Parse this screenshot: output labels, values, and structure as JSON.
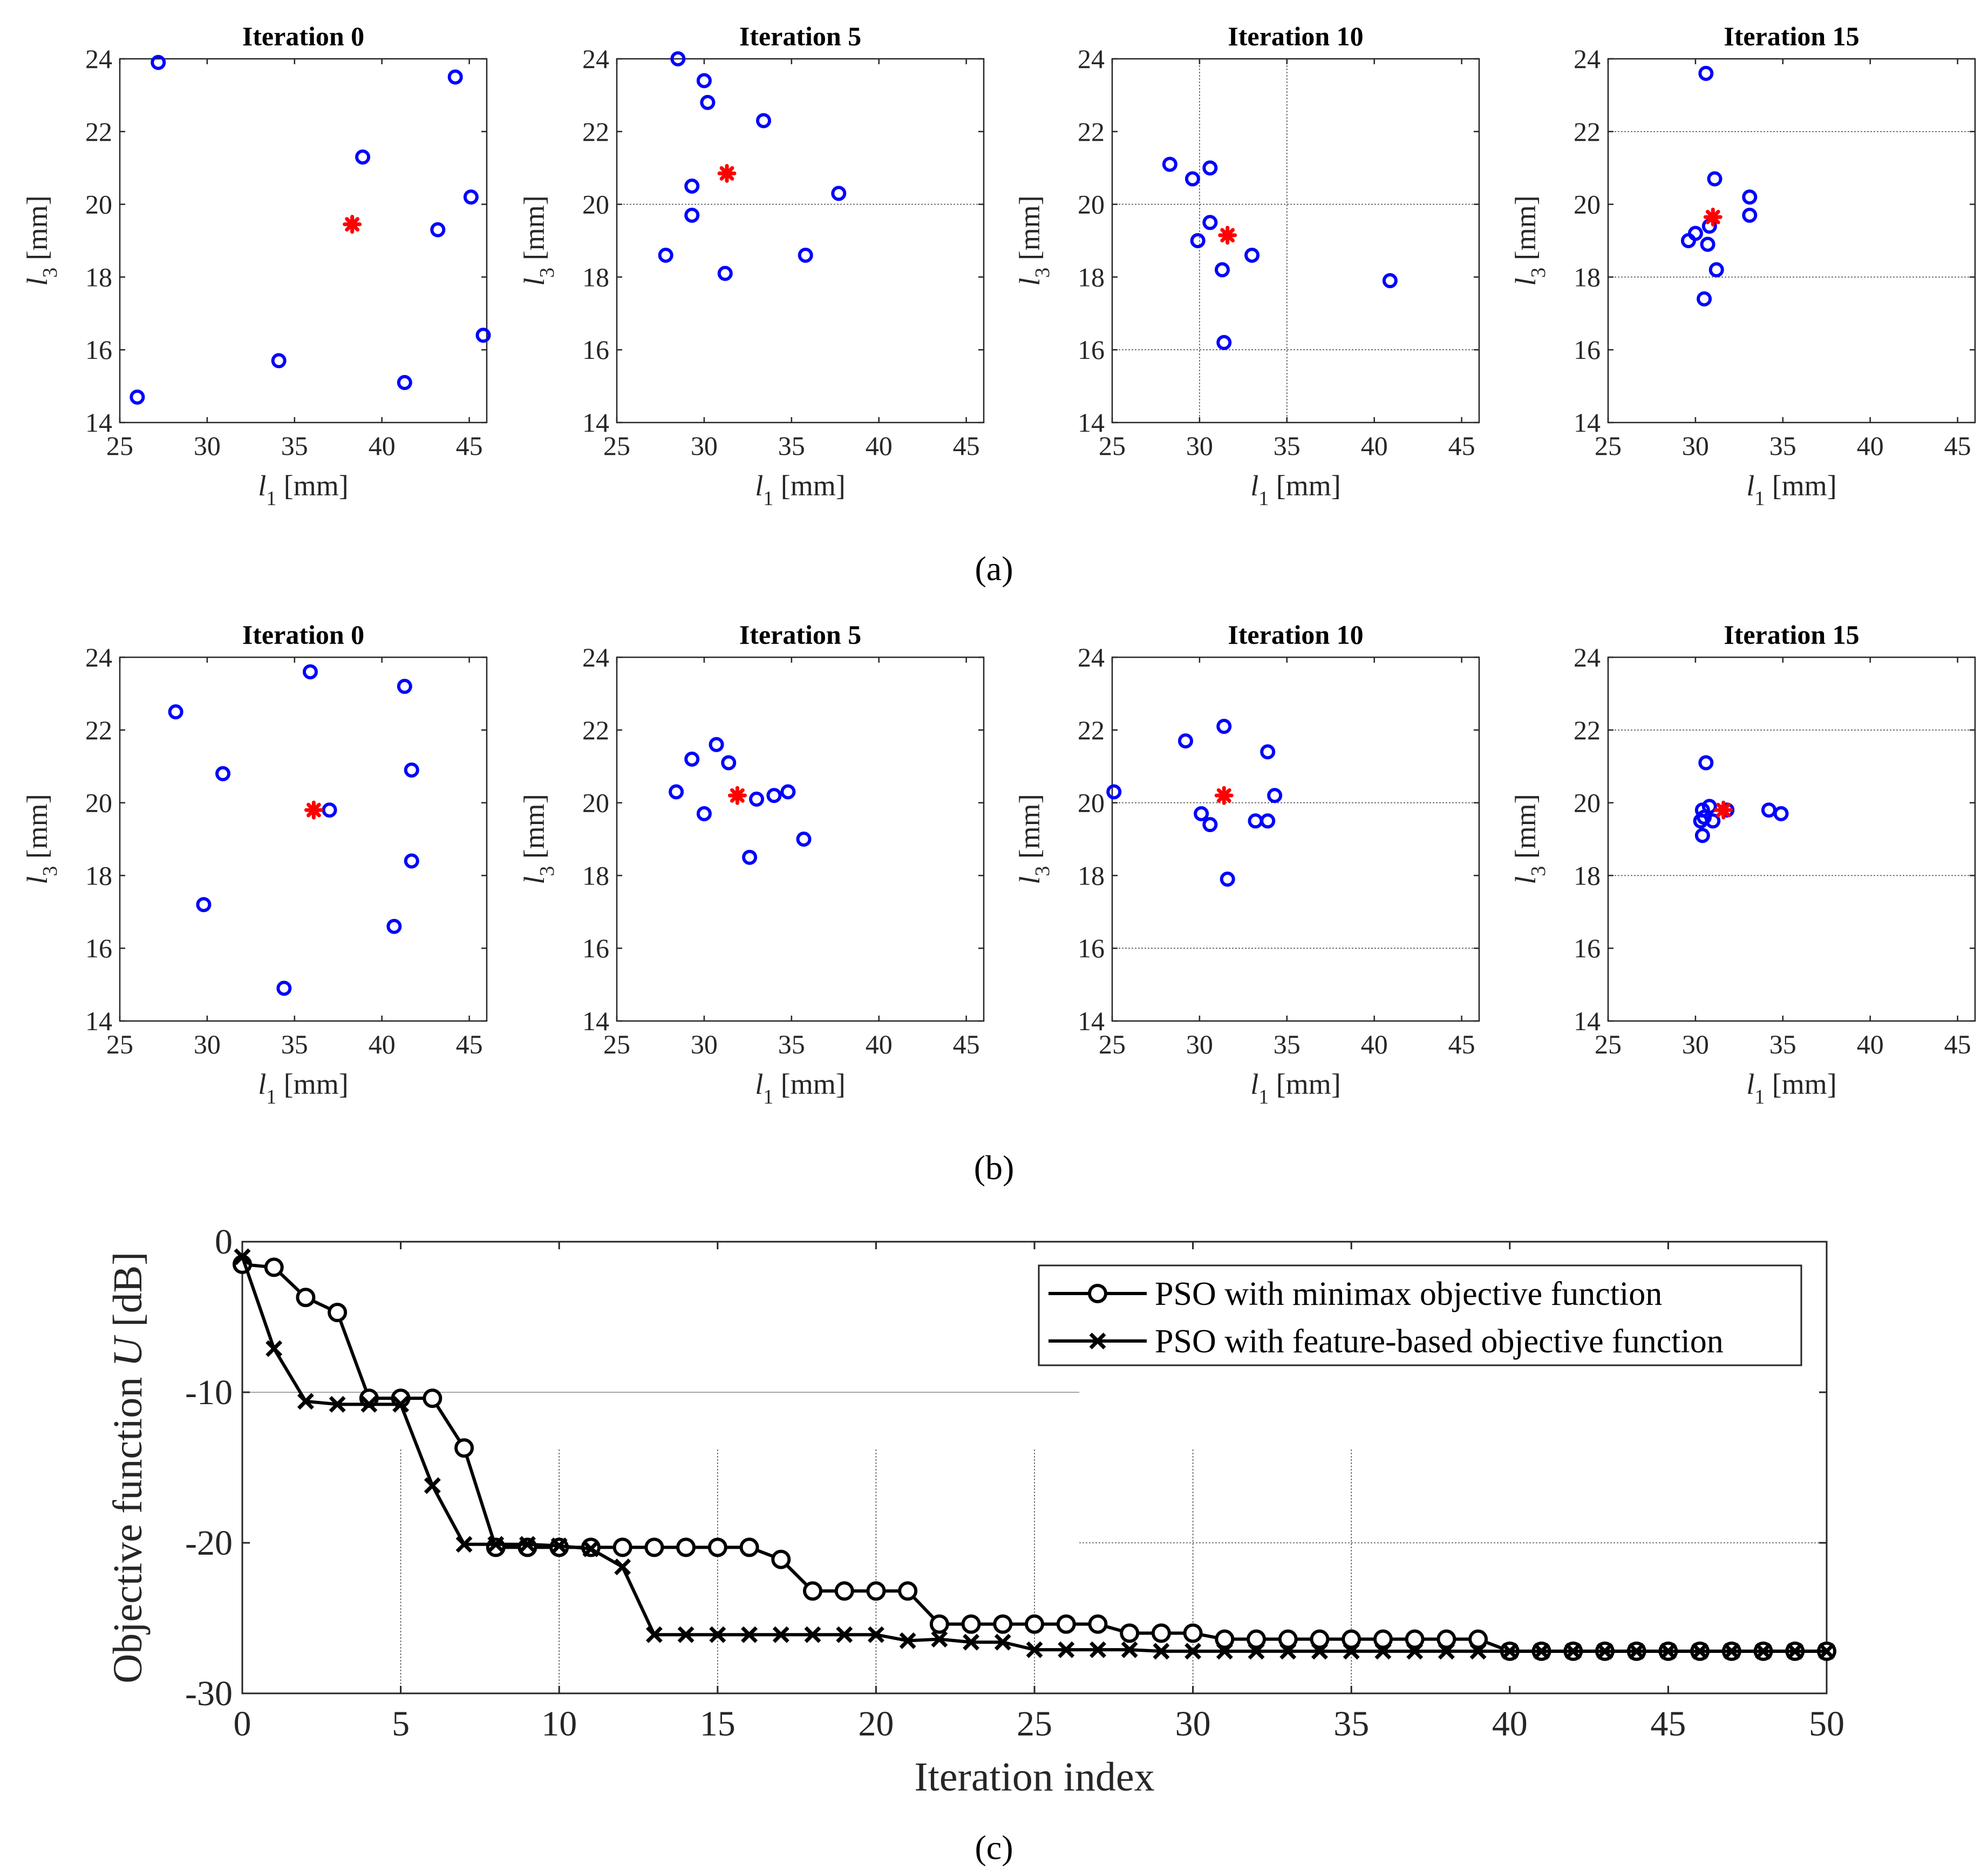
{
  "chart_data": {
    "panels": [
      {
        "label": "(a)",
        "subplots": [
          {
            "type": "scatter",
            "title": "Iteration 0",
            "xlabel": "l1 [mm]",
            "ylabel": "l3 [mm]",
            "xlim": [
              25,
              46
            ],
            "ylim": [
              14,
              24
            ],
            "xticks": [
              25,
              30,
              35,
              40,
              45
            ],
            "yticks": [
              14,
              16,
              18,
              20,
              22,
              24
            ],
            "particles": [
              [
                27.2,
                23.9
              ],
              [
                44.2,
                23.5
              ],
              [
                38.9,
                21.3
              ],
              [
                45.1,
                20.2
              ],
              [
                43.2,
                19.3
              ],
              [
                45.8,
                16.4
              ],
              [
                34.1,
                15.7
              ],
              [
                41.3,
                15.1
              ],
              [
                26.0,
                14.7
              ]
            ],
            "best": [
              38.3,
              19.45
            ],
            "grid_h": [],
            "grid_v": []
          },
          {
            "type": "scatter",
            "title": "Iteration 5",
            "xlabel": "l1 [mm]",
            "ylabel": "l3 [mm]",
            "xlim": [
              25,
              46
            ],
            "ylim": [
              14,
              24
            ],
            "xticks": [
              25,
              30,
              35,
              40,
              45
            ],
            "yticks": [
              14,
              16,
              18,
              20,
              22,
              24
            ],
            "particles": [
              [
                28.5,
                24.0
              ],
              [
                30.0,
                23.4
              ],
              [
                30.2,
                22.8
              ],
              [
                33.4,
                22.3
              ],
              [
                29.3,
                20.5
              ],
              [
                37.7,
                20.3
              ],
              [
                29.3,
                19.7
              ],
              [
                27.8,
                18.6
              ],
              [
                35.8,
                18.6
              ],
              [
                31.2,
                18.1
              ]
            ],
            "best": [
              31.3,
              20.85
            ],
            "grid_h": [
              20
            ],
            "grid_v": []
          },
          {
            "type": "scatter",
            "title": "Iteration 10",
            "xlabel": "l1 [mm]",
            "ylabel": "l3 [mm]",
            "xlim": [
              25,
              46
            ],
            "ylim": [
              14,
              24
            ],
            "xticks": [
              25,
              30,
              35,
              40,
              45
            ],
            "yticks": [
              14,
              16,
              18,
              20,
              22,
              24
            ],
            "particles": [
              [
                28.3,
                21.1
              ],
              [
                30.6,
                21.0
              ],
              [
                29.6,
                20.7
              ],
              [
                30.6,
                19.5
              ],
              [
                29.9,
                19.0
              ],
              [
                33.0,
                18.6
              ],
              [
                31.3,
                18.2
              ],
              [
                40.9,
                17.9
              ],
              [
                31.4,
                16.2
              ]
            ],
            "best": [
              31.6,
              19.15
            ],
            "grid_h": [
              20,
              16
            ],
            "grid_v": [
              30,
              35
            ]
          },
          {
            "type": "scatter",
            "title": "Iteration 15",
            "xlabel": "l1 [mm]",
            "ylabel": "l3 [mm]",
            "xlim": [
              25,
              46
            ],
            "ylim": [
              14,
              24
            ],
            "xticks": [
              25,
              30,
              35,
              40,
              45
            ],
            "yticks": [
              14,
              16,
              18,
              20,
              22,
              24
            ],
            "particles": [
              [
                30.6,
                23.6
              ],
              [
                31.1,
                20.7
              ],
              [
                33.1,
                20.2
              ],
              [
                33.1,
                19.7
              ],
              [
                30.8,
                19.4
              ],
              [
                30.0,
                19.2
              ],
              [
                29.6,
                19.0
              ],
              [
                30.7,
                18.9
              ],
              [
                31.2,
                18.2
              ],
              [
                30.5,
                17.4
              ]
            ],
            "best": [
              31.0,
              19.65
            ],
            "grid_h": [
              22,
              18
            ],
            "grid_v": []
          }
        ]
      },
      {
        "label": "(b)",
        "subplots": [
          {
            "type": "scatter",
            "title": "Iteration 0",
            "xlabel": "l1 [mm]",
            "ylabel": "l3 [mm]",
            "xlim": [
              25,
              46
            ],
            "ylim": [
              14,
              24
            ],
            "xticks": [
              25,
              30,
              35,
              40,
              45
            ],
            "yticks": [
              14,
              16,
              18,
              20,
              22,
              24
            ],
            "particles": [
              [
                35.9,
                23.6
              ],
              [
                41.3,
                23.2
              ],
              [
                28.2,
                22.5
              ],
              [
                41.7,
                20.9
              ],
              [
                30.9,
                20.8
              ],
              [
                37.0,
                19.8
              ],
              [
                41.7,
                18.4
              ],
              [
                29.8,
                17.2
              ],
              [
                40.7,
                16.6
              ],
              [
                34.4,
                14.9
              ]
            ],
            "best": [
              36.1,
              19.8
            ],
            "grid_h": [],
            "grid_v": []
          },
          {
            "type": "scatter",
            "title": "Iteration 5",
            "xlabel": "l1 [mm]",
            "ylabel": "l3 [mm]",
            "xlim": [
              25,
              46
            ],
            "ylim": [
              14,
              24
            ],
            "xticks": [
              25,
              30,
              35,
              40,
              45
            ],
            "yticks": [
              14,
              16,
              18,
              20,
              22,
              24
            ],
            "particles": [
              [
                30.7,
                21.6
              ],
              [
                29.3,
                21.2
              ],
              [
                31.4,
                21.1
              ],
              [
                34.8,
                20.3
              ],
              [
                28.4,
                20.3
              ],
              [
                34.0,
                20.2
              ],
              [
                33.0,
                20.1
              ],
              [
                30.0,
                19.7
              ],
              [
                35.7,
                19.0
              ],
              [
                32.6,
                18.5
              ]
            ],
            "best": [
              31.9,
              20.2
            ],
            "grid_h": [],
            "grid_v": []
          },
          {
            "type": "scatter",
            "title": "Iteration 10",
            "xlabel": "l1 [mm]",
            "ylabel": "l3 [mm]",
            "xlim": [
              25,
              46
            ],
            "ylim": [
              14,
              24
            ],
            "xticks": [
              25,
              30,
              35,
              40,
              45
            ],
            "yticks": [
              14,
              16,
              18,
              20,
              22,
              24
            ],
            "particles": [
              [
                31.4,
                22.1
              ],
              [
                29.2,
                21.7
              ],
              [
                33.9,
                21.4
              ],
              [
                25.1,
                20.3
              ],
              [
                34.3,
                20.2
              ],
              [
                30.1,
                19.7
              ],
              [
                33.2,
                19.5
              ],
              [
                33.9,
                19.5
              ],
              [
                30.6,
                19.4
              ],
              [
                31.6,
                17.9
              ]
            ],
            "best": [
              31.4,
              20.2
            ],
            "grid_h": [
              20,
              16
            ],
            "grid_v": []
          },
          {
            "type": "scatter",
            "title": "Iteration 15",
            "xlabel": "l1 [mm]",
            "ylabel": "l3 [mm]",
            "xlim": [
              25,
              46
            ],
            "ylim": [
              14,
              24
            ],
            "xticks": [
              25,
              30,
              35,
              40,
              45
            ],
            "yticks": [
              14,
              16,
              18,
              20,
              22,
              24
            ],
            "particles": [
              [
                30.6,
                21.1
              ],
              [
                30.8,
                19.9
              ],
              [
                31.8,
                19.8
              ],
              [
                30.4,
                19.8
              ],
              [
                34.2,
                19.8
              ],
              [
                34.9,
                19.7
              ],
              [
                30.5,
                19.6
              ],
              [
                31.0,
                19.5
              ],
              [
                30.3,
                19.5
              ],
              [
                30.4,
                19.1
              ]
            ],
            "best": [
              31.6,
              19.8
            ],
            "grid_h": [
              22,
              18
            ],
            "grid_v": []
          }
        ]
      },
      {
        "label": "(c)",
        "type": "line",
        "xlabel": "Iteration index",
        "ylabel_prefix": "Objective function ",
        "ylabel_var": "U",
        "ylabel_suffix": " [dB]",
        "xlim": [
          0,
          50
        ],
        "ylim": [
          -30,
          0
        ],
        "xticks": [
          0,
          5,
          10,
          15,
          20,
          25,
          30,
          35,
          40,
          45,
          50
        ],
        "yticks": [
          0,
          -10,
          -20,
          -30
        ],
        "series": [
          {
            "name": "PSO with minimax objective function",
            "marker": "o",
            "x": [
              0,
              1,
              2,
              3,
              4,
              5,
              6,
              7,
              8,
              9,
              10,
              11,
              12,
              13,
              14,
              15,
              16,
              17,
              18,
              19,
              20,
              21,
              22,
              23,
              24,
              25,
              26,
              27,
              28,
              29,
              30,
              31,
              32,
              33,
              34,
              35,
              36,
              37,
              38,
              39,
              40,
              41,
              42,
              43,
              44,
              45,
              46,
              47,
              48,
              49,
              50
            ],
            "y": [
              -1.5,
              -1.7,
              -3.7,
              -4.7,
              -10.4,
              -10.4,
              -10.4,
              -13.7,
              -20.3,
              -20.3,
              -20.3,
              -20.3,
              -20.3,
              -20.3,
              -20.3,
              -20.3,
              -20.3,
              -21.1,
              -23.2,
              -23.2,
              -23.2,
              -23.2,
              -25.4,
              -25.4,
              -25.4,
              -25.4,
              -25.4,
              -25.4,
              -26.0,
              -26.0,
              -26.0,
              -26.4,
              -26.4,
              -26.4,
              -26.4,
              -26.4,
              -26.4,
              -26.4,
              -26.4,
              -26.4,
              -27.2,
              -27.2,
              -27.2,
              -27.2,
              -27.2,
              -27.2,
              -27.2,
              -27.2,
              -27.2,
              -27.2,
              -27.2
            ]
          },
          {
            "name": "PSO with feature-based objective function",
            "marker": "x",
            "x": [
              0,
              1,
              2,
              3,
              4,
              5,
              6,
              7,
              8,
              9,
              10,
              11,
              12,
              13,
              14,
              15,
              16,
              17,
              18,
              19,
              20,
              21,
              22,
              23,
              24,
              25,
              26,
              27,
              28,
              29,
              30,
              31,
              32,
              33,
              34,
              35,
              36,
              37,
              38,
              39,
              40,
              41,
              42,
              43,
              44,
              45,
              46,
              47,
              48,
              49,
              50
            ],
            "y": [
              -1.0,
              -7.1,
              -10.6,
              -10.8,
              -10.8,
              -10.8,
              -16.2,
              -20.1,
              -20.1,
              -20.1,
              -20.2,
              -20.4,
              -21.6,
              -26.1,
              -26.1,
              -26.1,
              -26.1,
              -26.1,
              -26.1,
              -26.1,
              -26.1,
              -26.5,
              -26.4,
              -26.6,
              -26.6,
              -27.1,
              -27.1,
              -27.1,
              -27.1,
              -27.2,
              -27.2,
              -27.2,
              -27.2,
              -27.2,
              -27.2,
              -27.2,
              -27.2,
              -27.2,
              -27.2,
              -27.2,
              -27.2,
              -27.2,
              -27.2,
              -27.2,
              -27.2,
              -27.2,
              -27.2,
              -27.2,
              -27.2,
              -27.2,
              -27.2
            ]
          }
        ],
        "legend": "top-right"
      }
    ]
  },
  "colors": {
    "particle": "#0000ff",
    "best": "#ff0000",
    "line": "#000000",
    "grid": "#555555"
  }
}
